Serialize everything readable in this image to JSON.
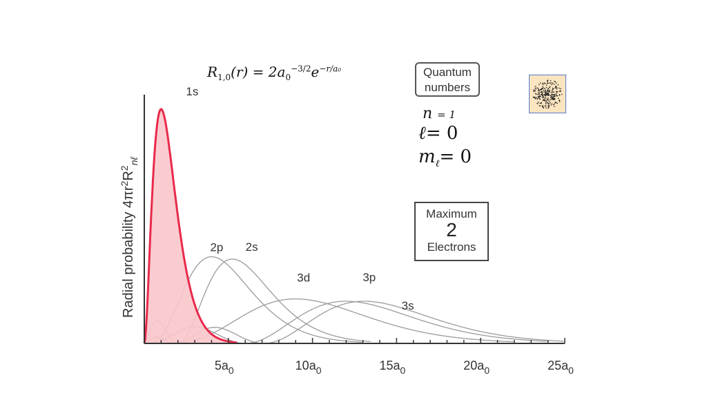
{
  "formula": {
    "lhs": "R",
    "lhs_sub": "1,0",
    "arg": "(r) = 2a",
    "a_sub": "0",
    "exp": "−3/2",
    "e": "e",
    "e_exp": "−r/a₀"
  },
  "quantum_box": {
    "line1": "Quantum",
    "line2": "numbers"
  },
  "quantum_numbers": {
    "n_symbol": "n",
    "n_value": "= 1",
    "l_symbol": "ℓ",
    "l_value": "= 0",
    "m_symbol": "m",
    "m_sub": "ℓ",
    "m_value": "= 0"
  },
  "max_box": {
    "line1": "Maximum",
    "line2": "2",
    "line3": "Electrons"
  },
  "thumbnail": {
    "name": "1s orbital dot-density image"
  },
  "colors": {
    "highlight": "#e8294b",
    "fill": "#f9c6cb",
    "other": "#9a9a9a",
    "axis": "#333333"
  },
  "chart_data": {
    "type": "line",
    "title": "",
    "xlabel": "",
    "ylabel": "Radial probability 4πr²R²nℓ",
    "x_units": "a0",
    "xlim": [
      0,
      25
    ],
    "ylim": [
      0,
      1
    ],
    "x_tick_labels": [
      "5a0",
      "10a0",
      "15a0",
      "20a0",
      "25a0"
    ],
    "x_tick_values": [
      5,
      10,
      15,
      20,
      25
    ],
    "highlighted_series": "1s",
    "series": [
      {
        "name": "1s",
        "label": "1s",
        "n": 1,
        "l": 0,
        "peak_x": 1.0,
        "peak_y": 1.0,
        "extent": 5.5,
        "highlighted": true
      },
      {
        "name": "2p",
        "label": "2p",
        "n": 2,
        "l": 1,
        "peak_x": 4.0,
        "peak_y": 0.37,
        "extent": 13.0
      },
      {
        "name": "2s",
        "label": "2s",
        "n": 2,
        "l": 0,
        "peak_x": 5.2,
        "peak_y": 0.36,
        "extent": 13.5
      },
      {
        "name": "3d",
        "label": "3d",
        "n": 3,
        "l": 2,
        "peak_x": 9.0,
        "peak_y": 0.19,
        "extent": 22.0
      },
      {
        "name": "3p",
        "label": "3p",
        "n": 3,
        "l": 1,
        "peak_x": 12.0,
        "peak_y": 0.18,
        "extent": 24.0
      },
      {
        "name": "3s",
        "label": "3s",
        "n": 3,
        "l": 0,
        "peak_x": 13.0,
        "peak_y": 0.18,
        "extent": 25.0
      }
    ]
  }
}
